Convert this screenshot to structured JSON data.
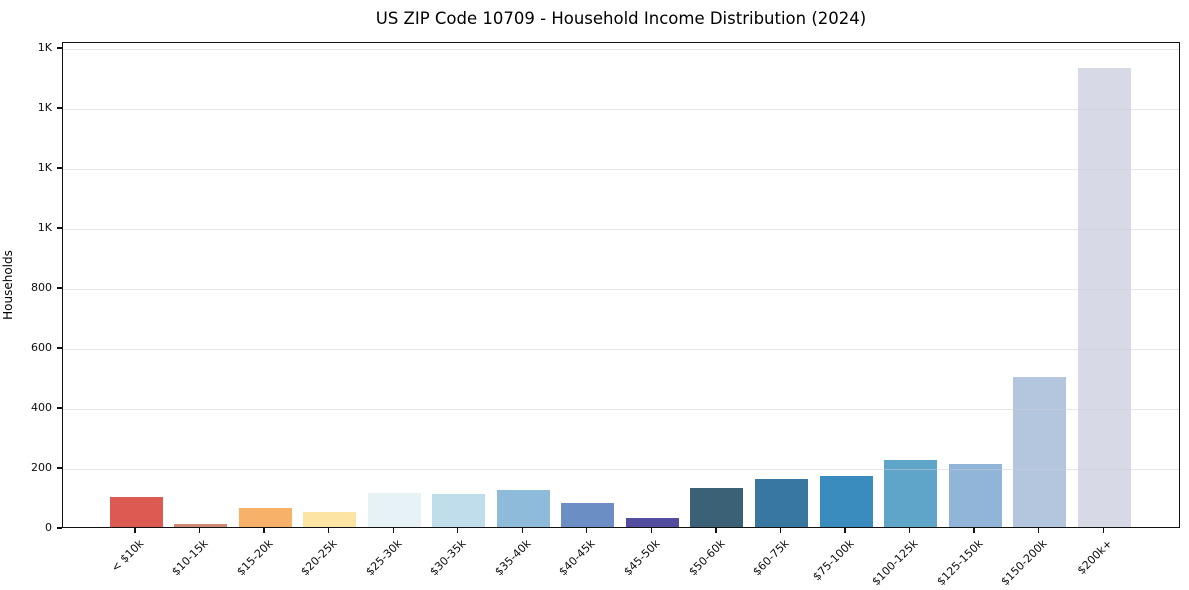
{
  "title": "US ZIP Code 10709 - Household Income Distribution (2024)",
  "chart_data": {
    "type": "bar",
    "title": "US ZIP Code 10709 - Household Income Distribution (2024)",
    "xlabel": "",
    "ylabel": "Households",
    "categories": [
      "< $10k",
      "$10-15k",
      "$15-20k",
      "$20-25k",
      "$25-30k",
      "$30-35k",
      "$35-40k",
      "$40-45k",
      "$45-50k",
      "$50-60k",
      "$60-75k",
      "$75-100k",
      "$100-125k",
      "$125-150k",
      "$150-200k",
      "$200k+"
    ],
    "values": [
      100,
      10,
      65,
      50,
      115,
      110,
      125,
      80,
      30,
      130,
      160,
      170,
      225,
      210,
      500,
      1530
    ],
    "bar_colors": [
      "#dc5a52",
      "#cf8a74",
      "#f8b169",
      "#fce5a4",
      "#e7f2f7",
      "#c0ddec",
      "#8fbbda",
      "#6b8ec4",
      "#524d9e",
      "#3a6175",
      "#3878a0",
      "#3a8cbf",
      "#5ea5c9",
      "#90b5d8",
      "#b4c6dd",
      "#d7d9e7"
    ],
    "ylim": [
      0,
      1620
    ],
    "yticks": [
      {
        "value": 0,
        "label": "0"
      },
      {
        "value": 200,
        "label": "200"
      },
      {
        "value": 400,
        "label": "400"
      },
      {
        "value": 600,
        "label": "600"
      },
      {
        "value": 800,
        "label": "800"
      },
      {
        "value": 1000,
        "label": "1K"
      },
      {
        "value": 1200,
        "label": "1K"
      },
      {
        "value": 1400,
        "label": "1K"
      },
      {
        "value": 1600,
        "label": "1K"
      }
    ],
    "grid": "horizontal-gridlines-on",
    "legend": "none",
    "background_color": "#ffffff",
    "axis_color": "#121212",
    "grid_color": "#e8e9ef"
  }
}
